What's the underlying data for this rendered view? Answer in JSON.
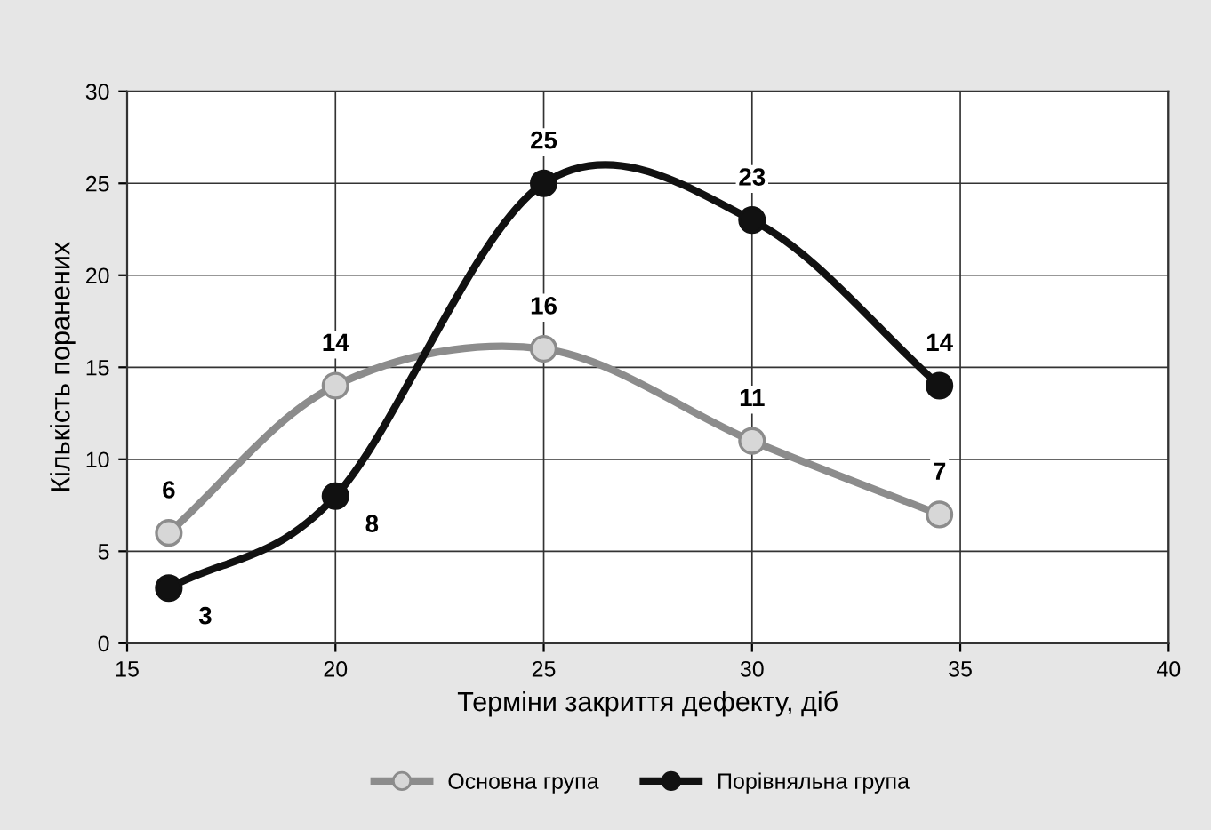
{
  "chart_data": {
    "type": "line",
    "xlabel": "Терміни закриття дефекту, діб",
    "ylabel": "Кількість поранених",
    "x": [
      16,
      20,
      25,
      30,
      34.5
    ],
    "series": [
      {
        "name": "Основна група",
        "color": "#8c8c8c",
        "values": [
          6,
          14,
          16,
          11,
          7
        ]
      },
      {
        "name": "Порівняльна група",
        "color": "#111111",
        "values": [
          3,
          8,
          25,
          23,
          14
        ]
      }
    ],
    "xlim": [
      15,
      40
    ],
    "xticks": [
      15,
      20,
      25,
      30,
      35,
      40
    ],
    "ylim": [
      0,
      30
    ],
    "yticks": [
      0,
      5,
      10,
      15,
      20,
      25,
      30
    ],
    "grid": true,
    "legend": "bottom",
    "marker": "circle",
    "line_style": "solid",
    "data_labels": true
  }
}
